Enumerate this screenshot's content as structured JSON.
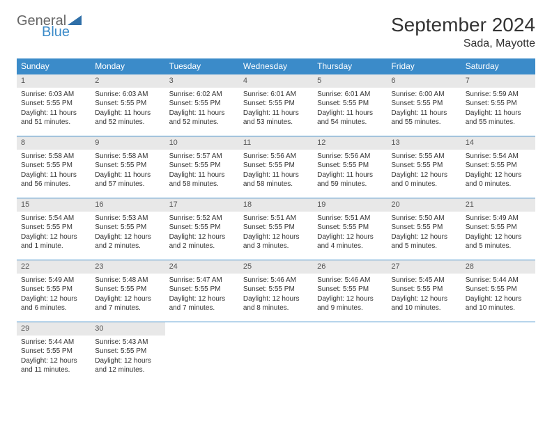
{
  "logo": {
    "line1": "General",
    "line2": "Blue",
    "icon_color": "#2f6fa8"
  },
  "title": "September 2024",
  "location": "Sada, Mayotte",
  "header_bg": "#3b8bc9",
  "header_fg": "#ffffff",
  "divider_color": "#3b8bc9",
  "daynum_bg": "#e8e8e8",
  "day_names": [
    "Sunday",
    "Monday",
    "Tuesday",
    "Wednesday",
    "Thursday",
    "Friday",
    "Saturday"
  ],
  "weeks": [
    [
      {
        "n": "1",
        "sunrise": "Sunrise: 6:03 AM",
        "sunset": "Sunset: 5:55 PM",
        "daylight": "Daylight: 11 hours and 51 minutes."
      },
      {
        "n": "2",
        "sunrise": "Sunrise: 6:03 AM",
        "sunset": "Sunset: 5:55 PM",
        "daylight": "Daylight: 11 hours and 52 minutes."
      },
      {
        "n": "3",
        "sunrise": "Sunrise: 6:02 AM",
        "sunset": "Sunset: 5:55 PM",
        "daylight": "Daylight: 11 hours and 52 minutes."
      },
      {
        "n": "4",
        "sunrise": "Sunrise: 6:01 AM",
        "sunset": "Sunset: 5:55 PM",
        "daylight": "Daylight: 11 hours and 53 minutes."
      },
      {
        "n": "5",
        "sunrise": "Sunrise: 6:01 AM",
        "sunset": "Sunset: 5:55 PM",
        "daylight": "Daylight: 11 hours and 54 minutes."
      },
      {
        "n": "6",
        "sunrise": "Sunrise: 6:00 AM",
        "sunset": "Sunset: 5:55 PM",
        "daylight": "Daylight: 11 hours and 55 minutes."
      },
      {
        "n": "7",
        "sunrise": "Sunrise: 5:59 AM",
        "sunset": "Sunset: 5:55 PM",
        "daylight": "Daylight: 11 hours and 55 minutes."
      }
    ],
    [
      {
        "n": "8",
        "sunrise": "Sunrise: 5:58 AM",
        "sunset": "Sunset: 5:55 PM",
        "daylight": "Daylight: 11 hours and 56 minutes."
      },
      {
        "n": "9",
        "sunrise": "Sunrise: 5:58 AM",
        "sunset": "Sunset: 5:55 PM",
        "daylight": "Daylight: 11 hours and 57 minutes."
      },
      {
        "n": "10",
        "sunrise": "Sunrise: 5:57 AM",
        "sunset": "Sunset: 5:55 PM",
        "daylight": "Daylight: 11 hours and 58 minutes."
      },
      {
        "n": "11",
        "sunrise": "Sunrise: 5:56 AM",
        "sunset": "Sunset: 5:55 PM",
        "daylight": "Daylight: 11 hours and 58 minutes."
      },
      {
        "n": "12",
        "sunrise": "Sunrise: 5:56 AM",
        "sunset": "Sunset: 5:55 PM",
        "daylight": "Daylight: 11 hours and 59 minutes."
      },
      {
        "n": "13",
        "sunrise": "Sunrise: 5:55 AM",
        "sunset": "Sunset: 5:55 PM",
        "daylight": "Daylight: 12 hours and 0 minutes."
      },
      {
        "n": "14",
        "sunrise": "Sunrise: 5:54 AM",
        "sunset": "Sunset: 5:55 PM",
        "daylight": "Daylight: 12 hours and 0 minutes."
      }
    ],
    [
      {
        "n": "15",
        "sunrise": "Sunrise: 5:54 AM",
        "sunset": "Sunset: 5:55 PM",
        "daylight": "Daylight: 12 hours and 1 minute."
      },
      {
        "n": "16",
        "sunrise": "Sunrise: 5:53 AM",
        "sunset": "Sunset: 5:55 PM",
        "daylight": "Daylight: 12 hours and 2 minutes."
      },
      {
        "n": "17",
        "sunrise": "Sunrise: 5:52 AM",
        "sunset": "Sunset: 5:55 PM",
        "daylight": "Daylight: 12 hours and 2 minutes."
      },
      {
        "n": "18",
        "sunrise": "Sunrise: 5:51 AM",
        "sunset": "Sunset: 5:55 PM",
        "daylight": "Daylight: 12 hours and 3 minutes."
      },
      {
        "n": "19",
        "sunrise": "Sunrise: 5:51 AM",
        "sunset": "Sunset: 5:55 PM",
        "daylight": "Daylight: 12 hours and 4 minutes."
      },
      {
        "n": "20",
        "sunrise": "Sunrise: 5:50 AM",
        "sunset": "Sunset: 5:55 PM",
        "daylight": "Daylight: 12 hours and 5 minutes."
      },
      {
        "n": "21",
        "sunrise": "Sunrise: 5:49 AM",
        "sunset": "Sunset: 5:55 PM",
        "daylight": "Daylight: 12 hours and 5 minutes."
      }
    ],
    [
      {
        "n": "22",
        "sunrise": "Sunrise: 5:49 AM",
        "sunset": "Sunset: 5:55 PM",
        "daylight": "Daylight: 12 hours and 6 minutes."
      },
      {
        "n": "23",
        "sunrise": "Sunrise: 5:48 AM",
        "sunset": "Sunset: 5:55 PM",
        "daylight": "Daylight: 12 hours and 7 minutes."
      },
      {
        "n": "24",
        "sunrise": "Sunrise: 5:47 AM",
        "sunset": "Sunset: 5:55 PM",
        "daylight": "Daylight: 12 hours and 7 minutes."
      },
      {
        "n": "25",
        "sunrise": "Sunrise: 5:46 AM",
        "sunset": "Sunset: 5:55 PM",
        "daylight": "Daylight: 12 hours and 8 minutes."
      },
      {
        "n": "26",
        "sunrise": "Sunrise: 5:46 AM",
        "sunset": "Sunset: 5:55 PM",
        "daylight": "Daylight: 12 hours and 9 minutes."
      },
      {
        "n": "27",
        "sunrise": "Sunrise: 5:45 AM",
        "sunset": "Sunset: 5:55 PM",
        "daylight": "Daylight: 12 hours and 10 minutes."
      },
      {
        "n": "28",
        "sunrise": "Sunrise: 5:44 AM",
        "sunset": "Sunset: 5:55 PM",
        "daylight": "Daylight: 12 hours and 10 minutes."
      }
    ],
    [
      {
        "n": "29",
        "sunrise": "Sunrise: 5:44 AM",
        "sunset": "Sunset: 5:55 PM",
        "daylight": "Daylight: 12 hours and 11 minutes."
      },
      {
        "n": "30",
        "sunrise": "Sunrise: 5:43 AM",
        "sunset": "Sunset: 5:55 PM",
        "daylight": "Daylight: 12 hours and 12 minutes."
      },
      null,
      null,
      null,
      null,
      null
    ]
  ]
}
